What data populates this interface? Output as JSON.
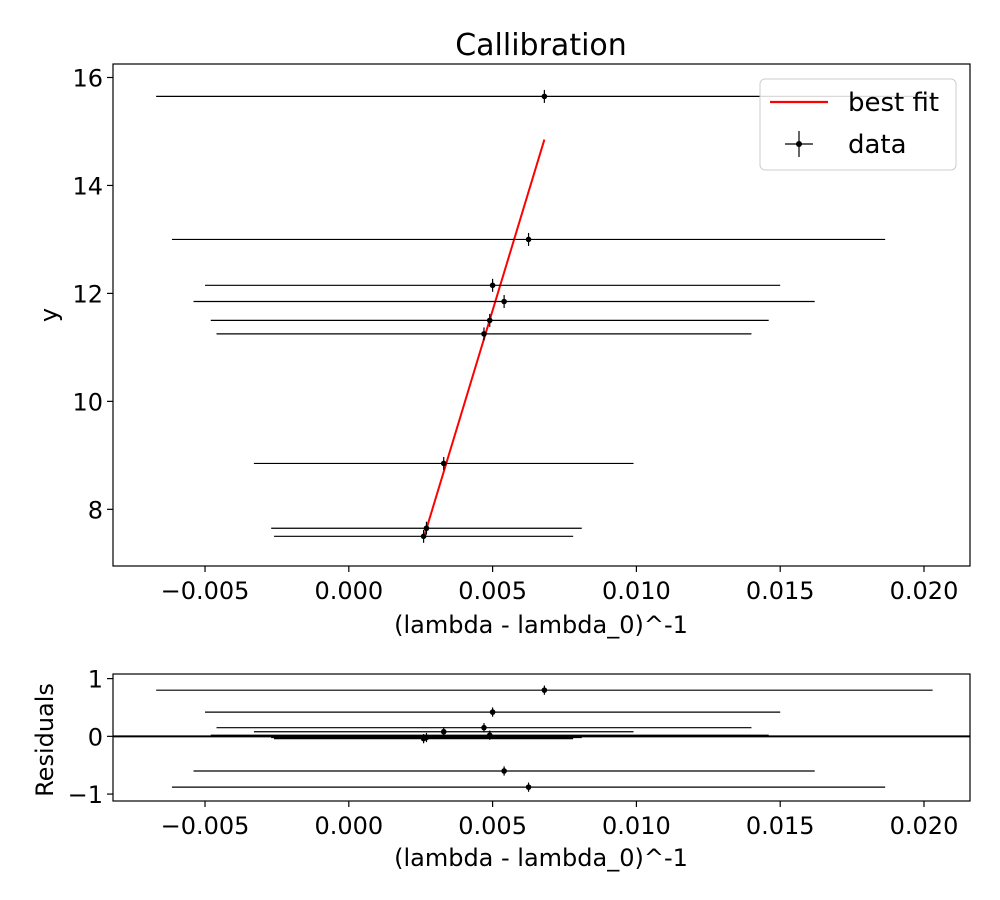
{
  "chart_data": [
    {
      "type": "scatter",
      "title": "Callibration",
      "xlabel": "(lambda - lambda_0)^-1",
      "ylabel": "y",
      "xlim": [
        -0.0082,
        0.0216
      ],
      "ylim": [
        6.95,
        16.25
      ],
      "xticks": [
        -0.005,
        0.0,
        0.005,
        0.01,
        0.015,
        0.02
      ],
      "xtick_labels": [
        "−0.005",
        "0.000",
        "0.005",
        "0.010",
        "0.015",
        "0.020"
      ],
      "yticks": [
        8,
        10,
        12,
        14,
        16
      ],
      "ytick_labels": [
        "8",
        "10",
        "12",
        "14",
        "16"
      ],
      "grid": false,
      "legend": "top-right",
      "series": [
        {
          "name": "best fit",
          "kind": "line",
          "color": "#ff0000",
          "x": [
            0.00262,
            0.0068
          ],
          "y": [
            7.5,
            14.85
          ]
        },
        {
          "name": "data",
          "kind": "errorbar",
          "color": "#000000",
          "points": [
            {
              "x": 0.0068,
              "y": 15.65,
              "xerr": 0.0135,
              "yerr": 0.12
            },
            {
              "x": 0.00625,
              "y": 13.0,
              "xerr": 0.0124,
              "yerr": 0.12
            },
            {
              "x": 0.005,
              "y": 12.15,
              "xerr": 0.01,
              "yerr": 0.12
            },
            {
              "x": 0.0054,
              "y": 11.85,
              "xerr": 0.0108,
              "yerr": 0.12
            },
            {
              "x": 0.0049,
              "y": 11.5,
              "xerr": 0.0097,
              "yerr": 0.12
            },
            {
              "x": 0.0047,
              "y": 11.25,
              "xerr": 0.0093,
              "yerr": 0.12
            },
            {
              "x": 0.0033,
              "y": 8.85,
              "xerr": 0.0066,
              "yerr": 0.12
            },
            {
              "x": 0.0027,
              "y": 7.65,
              "xerr": 0.0054,
              "yerr": 0.12
            },
            {
              "x": 0.0026,
              "y": 7.5,
              "xerr": 0.0052,
              "yerr": 0.12
            }
          ]
        }
      ]
    },
    {
      "type": "scatter",
      "title": "",
      "xlabel": "(lambda - lambda_0)^-1",
      "ylabel": "Residuals",
      "xlim": [
        -0.0082,
        0.0216
      ],
      "ylim": [
        -1.12,
        1.08
      ],
      "xticks": [
        -0.005,
        0.0,
        0.005,
        0.01,
        0.015,
        0.02
      ],
      "xtick_labels": [
        "−0.005",
        "0.000",
        "0.005",
        "0.010",
        "0.015",
        "0.020"
      ],
      "yticks": [
        -1,
        0,
        1
      ],
      "ytick_labels": [
        "−1",
        "0",
        "1"
      ],
      "grid": false,
      "zero_line": true,
      "series": [
        {
          "kind": "errorbar",
          "color": "#000000",
          "points": [
            {
              "x": 0.0068,
              "y": 0.8,
              "xerr": 0.0135,
              "yerr": 0.08
            },
            {
              "x": 0.005,
              "y": 0.42,
              "xerr": 0.01,
              "yerr": 0.08
            },
            {
              "x": 0.0047,
              "y": 0.15,
              "xerr": 0.0093,
              "yerr": 0.08
            },
            {
              "x": 0.0033,
              "y": 0.08,
              "xerr": 0.0066,
              "yerr": 0.08
            },
            {
              "x": 0.0049,
              "y": 0.02,
              "xerr": 0.0097,
              "yerr": 0.08
            },
            {
              "x": 0.0027,
              "y": -0.02,
              "xerr": 0.0054,
              "yerr": 0.08
            },
            {
              "x": 0.0026,
              "y": -0.04,
              "xerr": 0.0052,
              "yerr": 0.08
            },
            {
              "x": 0.0054,
              "y": -0.6,
              "xerr": 0.0108,
              "yerr": 0.08
            },
            {
              "x": 0.00625,
              "y": -0.88,
              "xerr": 0.0124,
              "yerr": 0.08
            }
          ]
        }
      ]
    }
  ]
}
